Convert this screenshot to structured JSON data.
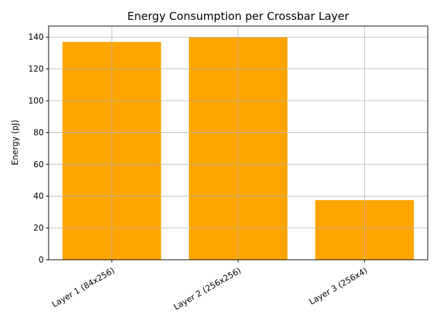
{
  "chart_data": {
    "type": "bar",
    "title": "Energy Consumption per Crossbar Layer",
    "xlabel": "",
    "ylabel": "Energy (pJ)",
    "categories": [
      "Layer 1 (84x256)",
      "Layer 2 (256x256)",
      "Layer 3 (256x4)"
    ],
    "values": [
      137.0,
      140.0,
      37.5
    ],
    "ylim": [
      0,
      147
    ],
    "yticks": [
      0,
      20,
      40,
      60,
      80,
      100,
      120,
      140
    ],
    "grid": true,
    "bar_color": "#ffa500",
    "grid_color": "#b0b0b0",
    "xtick_rotation_deg": 30
  }
}
